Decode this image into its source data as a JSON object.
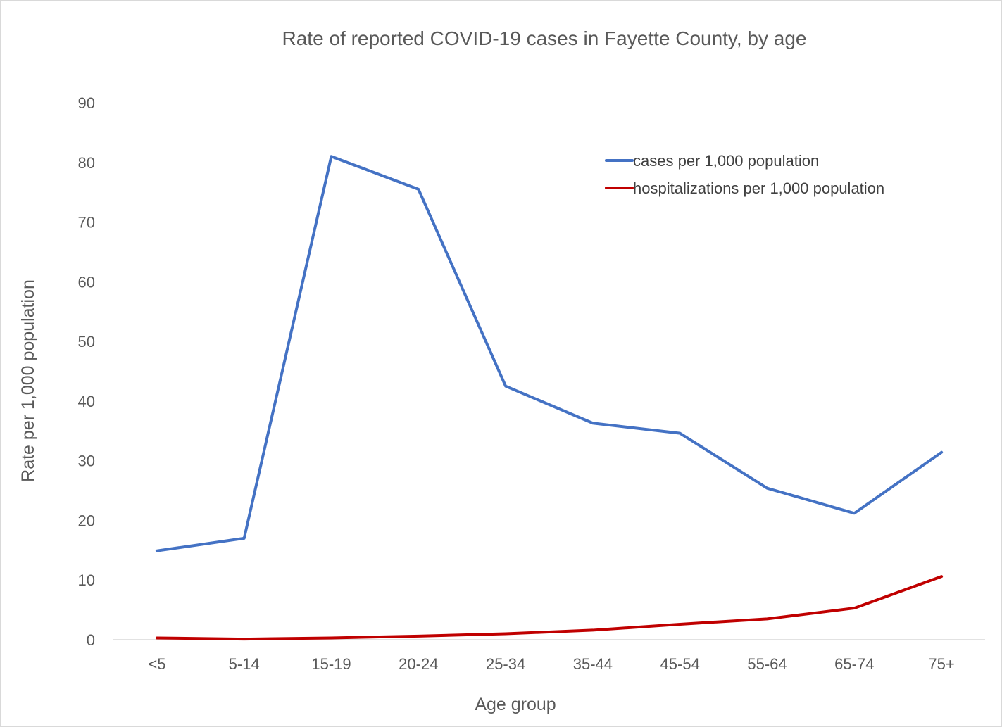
{
  "chart_data": {
    "type": "line",
    "title": "Rate of reported COVID-19 cases in Fayette County, by age",
    "xlabel": "Age group",
    "ylabel": "Rate per 1,000 population",
    "categories": [
      "<5",
      "5-14",
      "15-19",
      "20-24",
      "25-34",
      "35-44",
      "45-54",
      "55-64",
      "65-74",
      "75+"
    ],
    "ylim": [
      0,
      90
    ],
    "yticks": [
      0,
      10,
      20,
      30,
      40,
      50,
      60,
      70,
      80,
      90
    ],
    "grid": false,
    "legend_position": "top-right",
    "series": [
      {
        "name": "cases per 1,000 population",
        "color": "#4472c4",
        "values": [
          14.9,
          17.0,
          81.0,
          75.5,
          42.5,
          36.3,
          34.6,
          25.4,
          21.2,
          31.4
        ]
      },
      {
        "name": "hospitalizations per 1,000 population",
        "color": "#c00000",
        "values": [
          0.3,
          0.1,
          0.3,
          0.6,
          1.0,
          1.6,
          2.6,
          3.5,
          5.3,
          10.6
        ]
      }
    ]
  }
}
